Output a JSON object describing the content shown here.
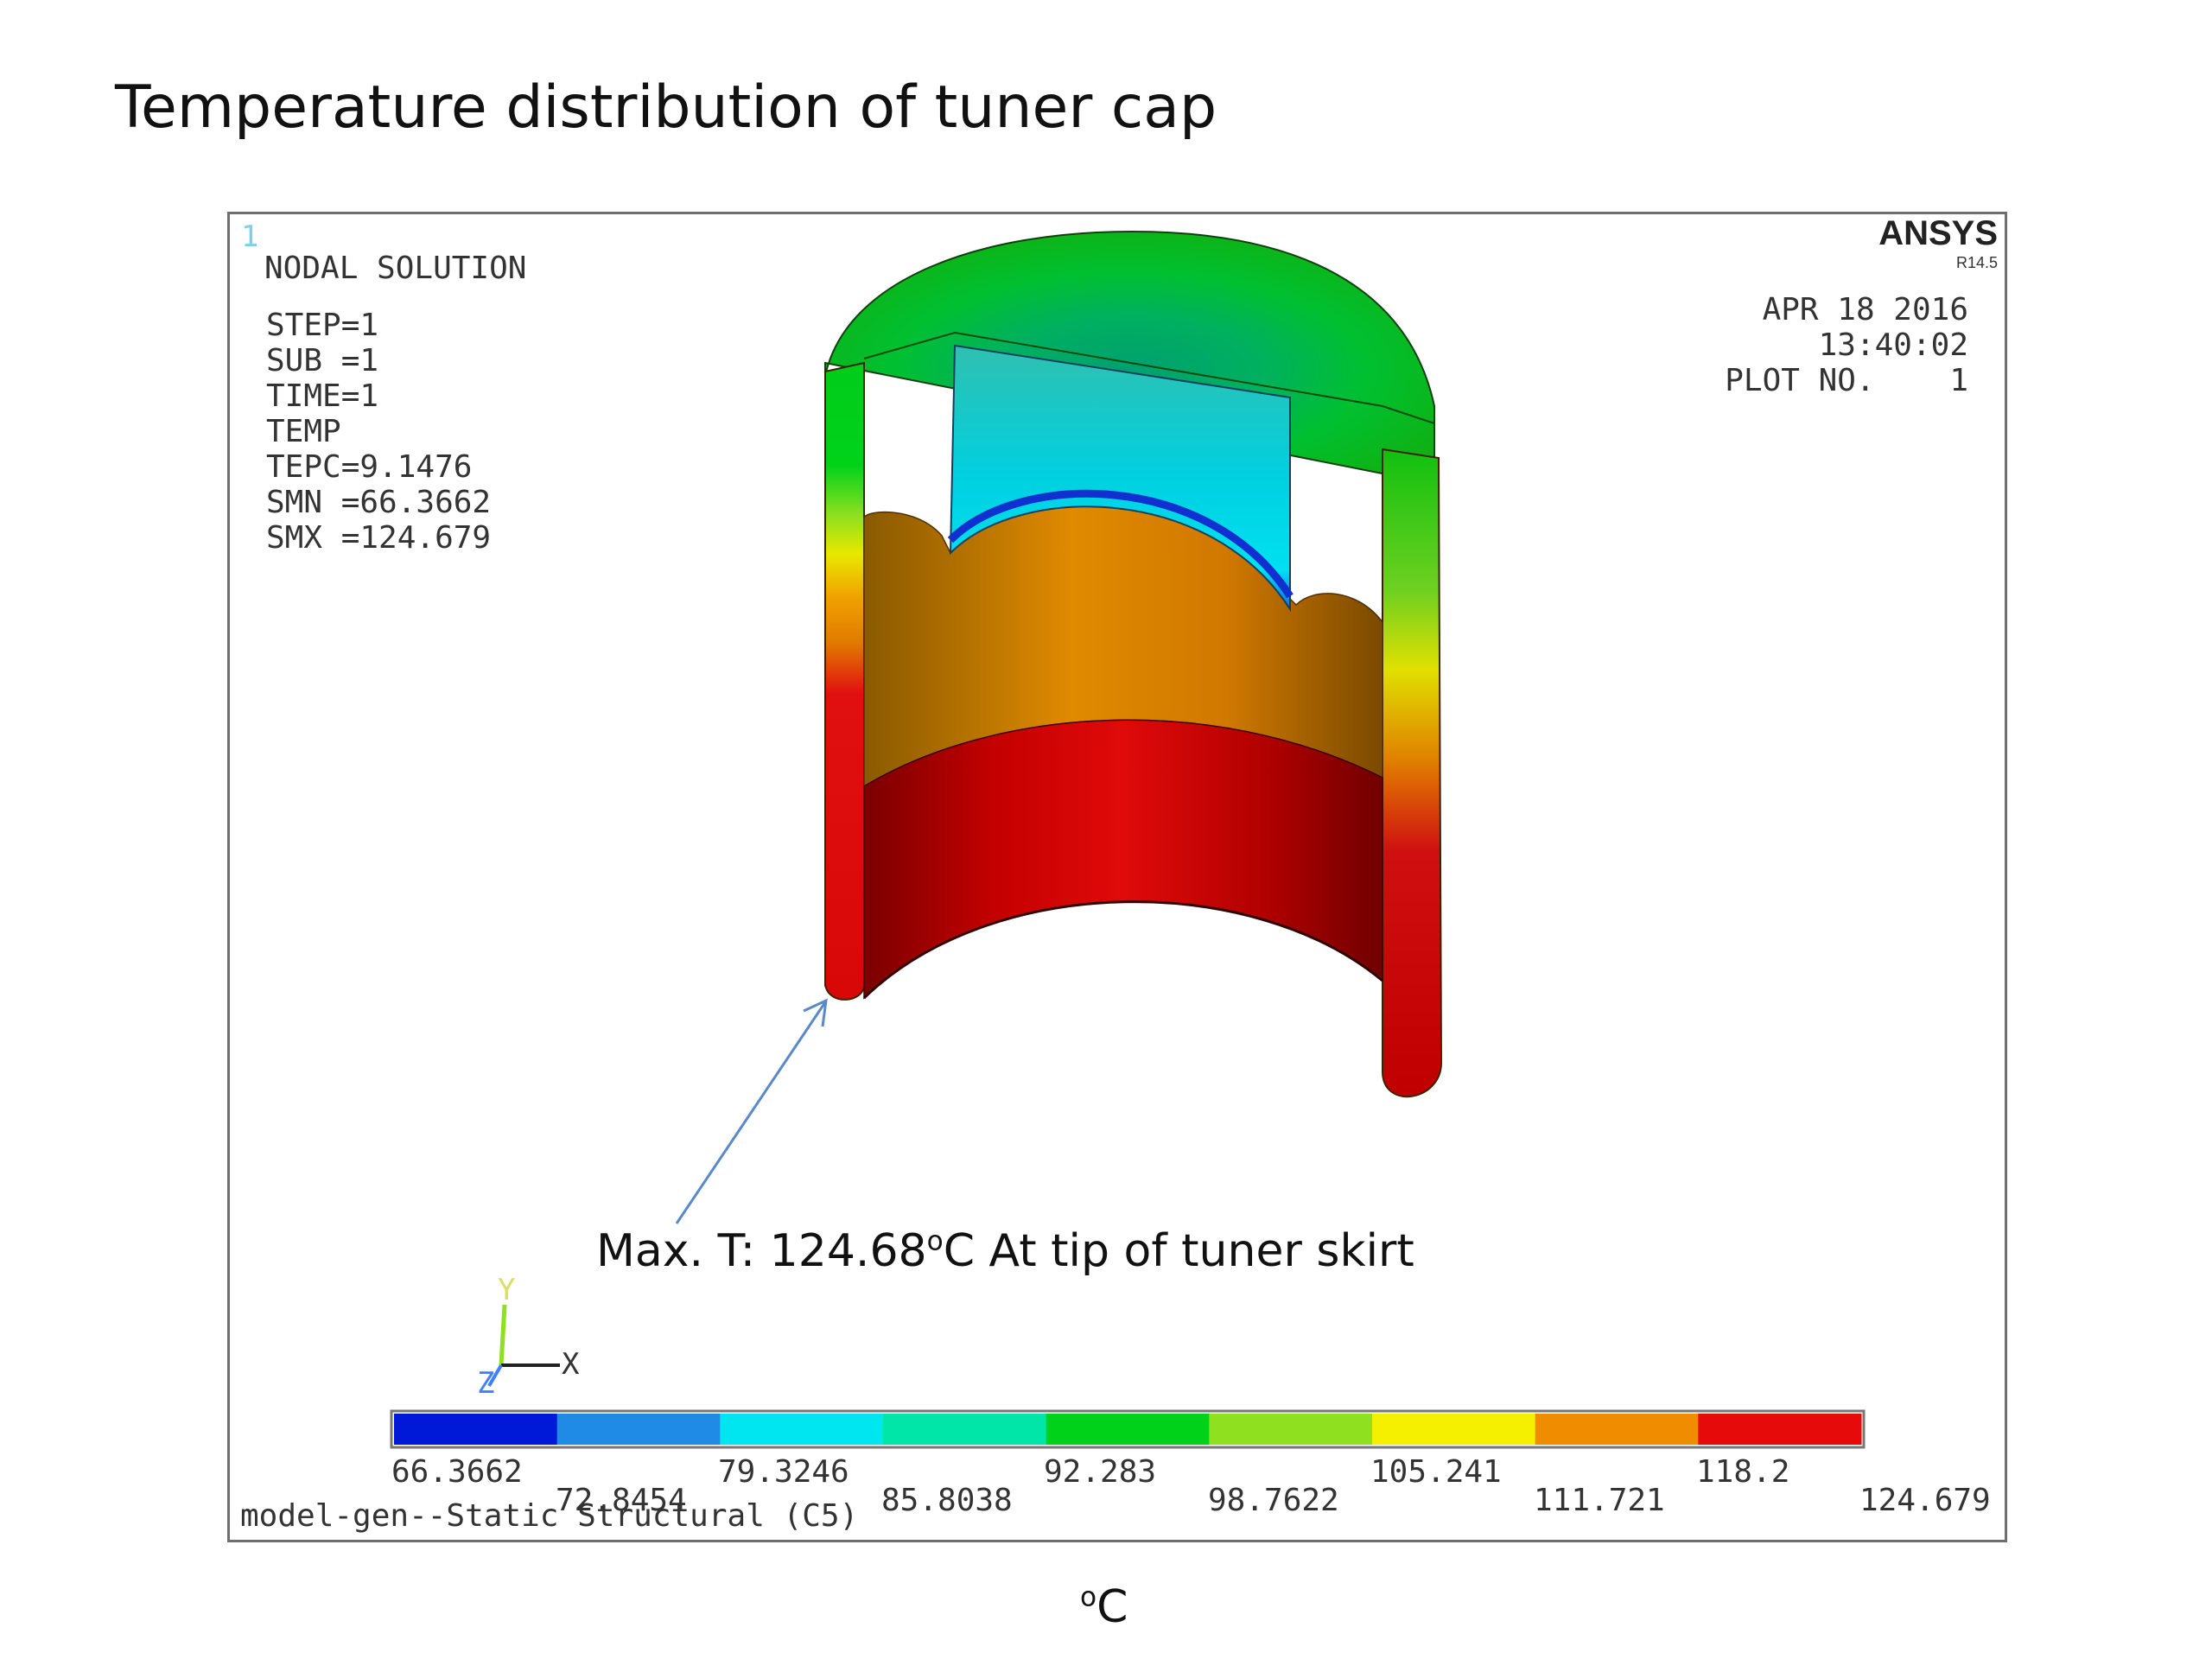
{
  "slide": {
    "title": "Temperature distribution of tuner cap",
    "unit_prefix": "o",
    "unit_suffix": "C"
  },
  "plot": {
    "window_number": "1",
    "header": "NODAL SOLUTION",
    "info_lines": [
      "STEP=1",
      "SUB =1",
      "TIME=1",
      "TEMP",
      "TEPC=9.1476",
      "SMN =66.3662",
      "SMX =124.679"
    ],
    "logo": "ANSYS",
    "version": "R14.5",
    "date_lines": [
      "APR 18 2016",
      "13:40:02",
      "PLOT NO.    1"
    ],
    "footer": "model-gen--Static Structural (C5)",
    "axes": {
      "y": "Y",
      "x": "X",
      "z": "Z"
    }
  },
  "annotation": {
    "prefix": "Max. T: 124.68",
    "sup": "o",
    "suffix": "C  At tip of tuner skirt"
  },
  "legend": {
    "colors": [
      "#0018d8",
      "#1f8be6",
      "#00e6f0",
      "#00e6a8",
      "#00d21a",
      "#8fe01e",
      "#f5f000",
      "#f08c00",
      "#e60a0a"
    ],
    "labels_top": [
      "66.3662",
      "79.3246",
      "92.283",
      "105.241",
      "118.2"
    ],
    "labels_bottom": [
      "72.8454",
      "85.8038",
      "98.7622",
      "111.721",
      "124.679"
    ]
  }
}
